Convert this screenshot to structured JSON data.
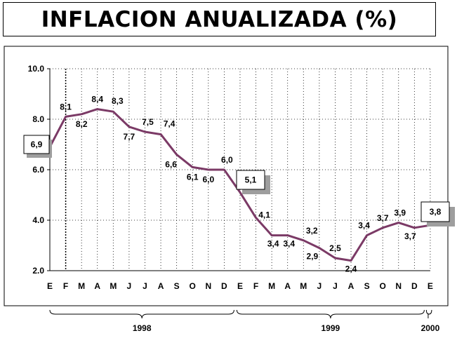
{
  "chart_data": {
    "type": "line",
    "title": "INFLACION ANUALIZADA (%)",
    "ylim": [
      2.0,
      10.0
    ],
    "yticks": [
      "2.0",
      "4.0",
      "6.0",
      "8.0",
      "10.0"
    ],
    "month_labels": [
      "E",
      "F",
      "M",
      "A",
      "M",
      "J",
      "J",
      "A",
      "S",
      "O",
      "N",
      "D",
      "E",
      "F",
      "M",
      "A",
      "M",
      "J",
      "J",
      "A",
      "S",
      "O",
      "N",
      "D",
      "E"
    ],
    "years": [
      "1998",
      "1999",
      "2000"
    ],
    "series": [
      {
        "values": [
          6.9,
          8.1,
          8.2,
          8.4,
          8.3,
          7.7,
          7.5,
          7.4,
          6.6,
          6.1,
          6.0,
          6.0,
          5.1,
          4.1,
          3.4,
          3.4,
          3.2,
          2.9,
          2.5,
          2.4,
          3.4,
          3.7,
          3.9,
          3.7,
          3.8
        ],
        "labels": [
          "6,9",
          "8,1",
          "8,2",
          "8,4",
          "8,3",
          "7,7",
          "7,5",
          "7,4",
          "6,6",
          "6,1",
          "6,0",
          "6,0",
          "5,1",
          "4,1",
          "3,4",
          "3,4",
          "3,2",
          "2,9",
          "2,5",
          "2,4",
          "3,4",
          "3,7",
          "3,9",
          "3,7",
          "3,8"
        ],
        "color": "#7b3a66"
      }
    ],
    "grid": true,
    "legend": "none"
  }
}
